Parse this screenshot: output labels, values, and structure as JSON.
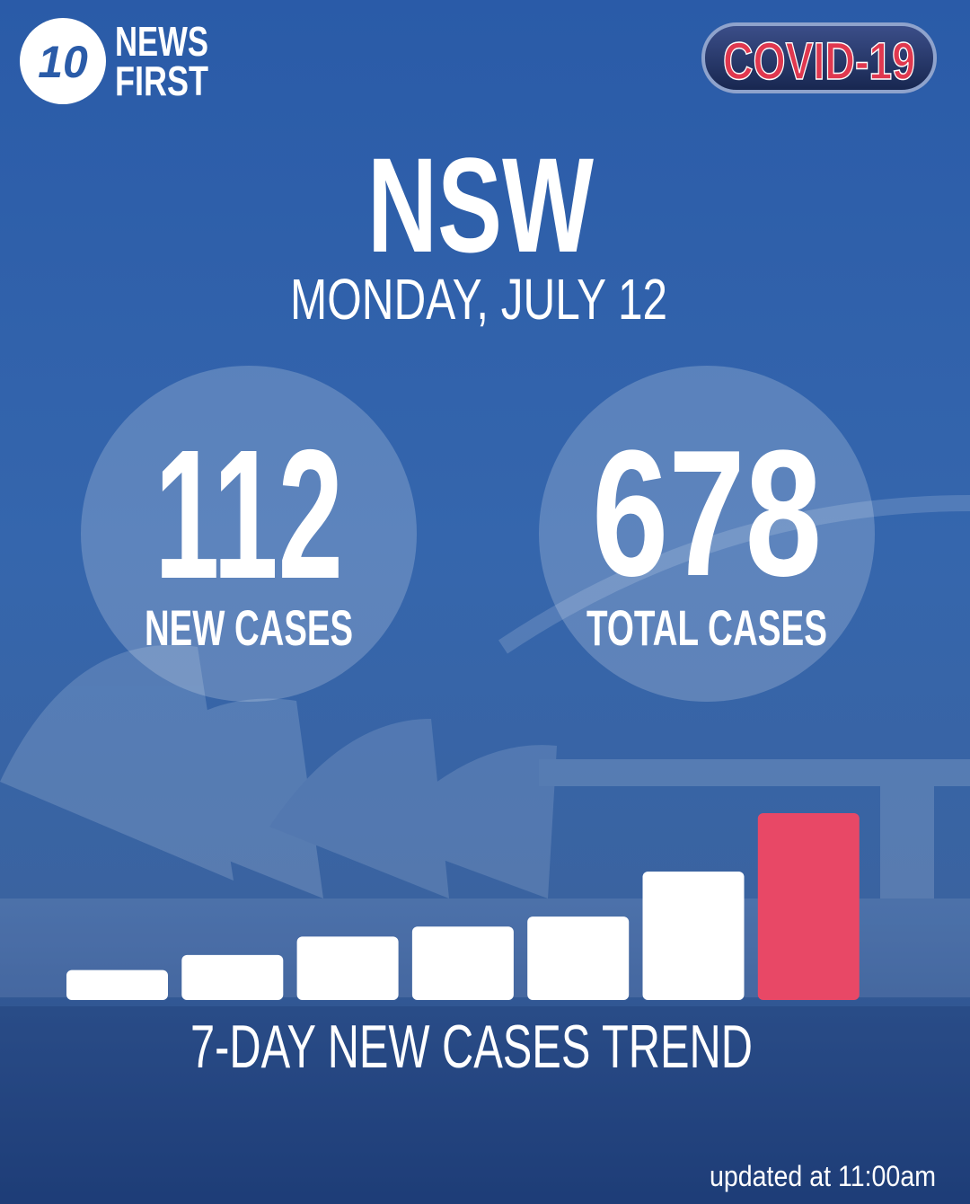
{
  "header": {
    "logo": "10",
    "brand_line_1": "NEWS",
    "brand_line_2": "FIRST",
    "badge": "COVID-19"
  },
  "region": "NSW",
  "date": "MONDAY, JULY 12",
  "stats": [
    {
      "value": "112",
      "label": "NEW CASES"
    },
    {
      "value": "678",
      "label": "TOTAL CASES"
    }
  ],
  "chart_data": {
    "type": "bar",
    "title": "7-DAY NEW CASES TREND",
    "values": [
      18,
      27,
      38,
      44,
      50,
      77,
      112
    ],
    "colors": [
      "#ffffff",
      "#ffffff",
      "#ffffff",
      "#ffffff",
      "#ffffff",
      "#ffffff",
      "#e84866"
    ]
  },
  "footer": "updated at 11:00am"
}
